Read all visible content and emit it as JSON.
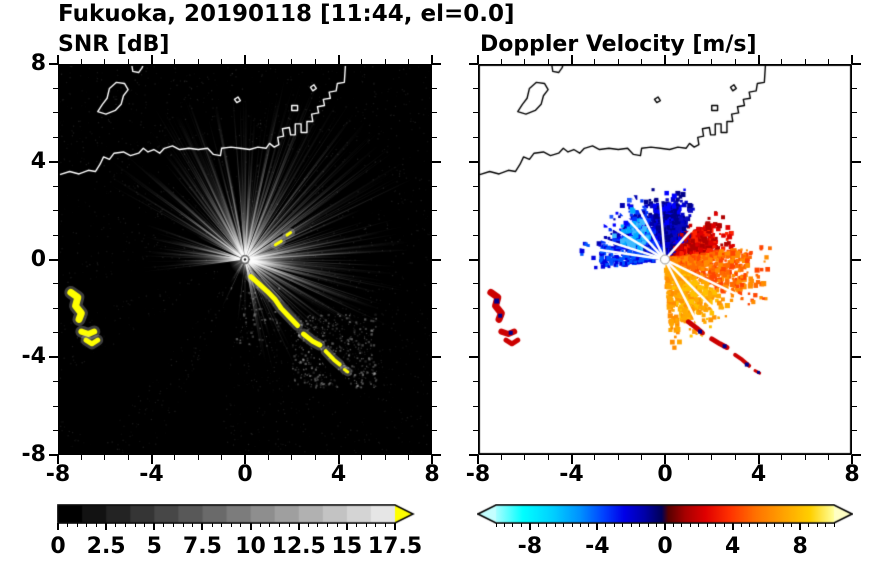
{
  "title": "Fukuoka, 20190118 [11:44, el=0.0]",
  "panels": {
    "snr": {
      "label": "SNR [dB]"
    },
    "doppler": {
      "label": "Doppler Velocity [m/s]"
    }
  },
  "axes": {
    "xlim": [
      -8,
      8
    ],
    "ylim": [
      -8,
      8
    ],
    "x_tick_values": [
      -8,
      -4,
      0,
      4,
      8
    ],
    "x_tick_labels": [
      "-8",
      "-4",
      "0",
      "4",
      "8"
    ],
    "y_tick_values": [
      8,
      4,
      0,
      -4,
      -8
    ],
    "y_tick_labels": [
      "8",
      "4",
      "0",
      "-4",
      "-8"
    ],
    "minor_step": 1
  },
  "colorbars": {
    "snr": {
      "min": 0,
      "max": 17.5,
      "minor_step": 0.5,
      "tick_values": [
        0,
        2.5,
        5,
        7.5,
        10,
        12.5,
        15,
        17.5
      ],
      "tick_labels": [
        "0",
        "2.5",
        "5",
        "7.5",
        "10",
        "12.5",
        "15",
        "17.5"
      ],
      "steps": 14,
      "low_color": "#000000",
      "high_color": "#e6e6e6",
      "over_color": "#ffff00"
    },
    "doppler": {
      "min": -10,
      "max": 10,
      "minor_step": 0.5,
      "tick_values": [
        -8,
        -4,
        0,
        4,
        8
      ],
      "tick_labels": [
        "-8",
        "-4",
        "0",
        "4",
        "8"
      ],
      "gradient": [
        [
          "#a8feff",
          0
        ],
        [
          "#00ffff",
          0.08
        ],
        [
          "#00cfff",
          0.17
        ],
        [
          "#0090ff",
          0.25
        ],
        [
          "#0040ff",
          0.32
        ],
        [
          "#0000e8",
          0.38
        ],
        [
          "#0000a8",
          0.44
        ],
        [
          "#000058",
          0.49
        ],
        [
          "#580000",
          0.51
        ],
        [
          "#a80000",
          0.56
        ],
        [
          "#e00000",
          0.62
        ],
        [
          "#ff3000",
          0.69
        ],
        [
          "#ff7300",
          0.77
        ],
        [
          "#ffa200",
          0.85
        ],
        [
          "#ffd000",
          0.93
        ],
        [
          "#ffff9c",
          1
        ]
      ],
      "under_color": "#c4ffff",
      "over_color": "#ffffc4"
    }
  },
  "coastline": {
    "main": [
      [
        -8,
        3.45
      ],
      [
        -7.5,
        3.6
      ],
      [
        -7.1,
        3.5
      ],
      [
        -6.7,
        3.65
      ],
      [
        -6.4,
        3.6
      ],
      [
        -6.2,
        3.9
      ],
      [
        -6.05,
        4.2
      ],
      [
        -5.8,
        4.1
      ],
      [
        -5.6,
        4.35
      ],
      [
        -5.2,
        4.4
      ],
      [
        -4.9,
        4.25
      ],
      [
        -4.55,
        4.35
      ],
      [
        -4.35,
        4.55
      ],
      [
        -4.15,
        4.4
      ],
      [
        -3.9,
        4.5
      ],
      [
        -3.65,
        4.35
      ],
      [
        -3.45,
        4.55
      ],
      [
        -3.1,
        4.65
      ],
      [
        -2.8,
        4.5
      ],
      [
        -2.4,
        4.55
      ],
      [
        -2.0,
        4.5
      ],
      [
        -1.6,
        4.55
      ],
      [
        -1.35,
        4.3
      ],
      [
        -1.05,
        4.25
      ],
      [
        -1.0,
        4.55
      ],
      [
        -0.6,
        4.6
      ],
      [
        -0.2,
        4.55
      ],
      [
        0.2,
        4.5
      ],
      [
        0.55,
        4.6
      ],
      [
        0.9,
        4.55
      ],
      [
        1.05,
        4.75
      ],
      [
        1.25,
        4.6
      ],
      [
        1.45,
        4.7
      ],
      [
        1.4,
        5.0
      ],
      [
        1.65,
        5.05
      ],
      [
        1.6,
        5.35
      ],
      [
        1.9,
        5.4
      ],
      [
        1.95,
        5.1
      ],
      [
        2.15,
        5.1
      ],
      [
        2.15,
        5.55
      ],
      [
        2.4,
        5.55
      ],
      [
        2.4,
        5.2
      ],
      [
        2.65,
        5.2
      ],
      [
        2.65,
        5.65
      ],
      [
        2.9,
        5.65
      ],
      [
        2.85,
        5.95
      ],
      [
        3.15,
        6.0
      ],
      [
        3.1,
        6.25
      ],
      [
        3.4,
        6.3
      ],
      [
        3.35,
        6.55
      ],
      [
        3.65,
        6.6
      ],
      [
        3.6,
        6.85
      ],
      [
        3.9,
        6.9
      ],
      [
        3.95,
        7.2
      ],
      [
        4.25,
        7.25
      ],
      [
        4.3,
        8.0
      ]
    ],
    "islands": [
      [
        [
          -6.3,
          6.05
        ],
        [
          -6.1,
          6.35
        ],
        [
          -5.9,
          6.6
        ],
        [
          -5.8,
          7.0
        ],
        [
          -5.5,
          7.25
        ],
        [
          -5.15,
          7.2
        ],
        [
          -5.0,
          6.95
        ],
        [
          -5.2,
          6.7
        ],
        [
          -5.3,
          6.35
        ],
        [
          -5.55,
          6.1
        ],
        [
          -5.95,
          5.95
        ]
      ],
      [
        [
          -0.45,
          6.55
        ],
        [
          -0.3,
          6.65
        ],
        [
          -0.2,
          6.5
        ],
        [
          -0.35,
          6.42
        ]
      ],
      [
        [
          2.0,
          6.1
        ],
        [
          2.25,
          6.1
        ],
        [
          2.25,
          6.3
        ],
        [
          2.0,
          6.3
        ]
      ],
      [
        [
          2.8,
          7.05
        ],
        [
          2.95,
          7.15
        ],
        [
          3.05,
          7.0
        ],
        [
          2.9,
          6.9
        ]
      ]
    ],
    "open_shapes": [
      [
        [
          -4.85,
          8.0
        ],
        [
          -4.8,
          7.7
        ],
        [
          -4.55,
          7.65
        ],
        [
          -4.4,
          7.85
        ],
        [
          -4.35,
          8.0
        ]
      ]
    ]
  },
  "chart_data": [
    {
      "type": "heatmap",
      "panel": "snr",
      "title": "SNR [dB]",
      "units": "dB",
      "xlim": [
        -8,
        8
      ],
      "ylim": [
        -8,
        8
      ],
      "background": "#000000",
      "coastline_color": "#ffffff",
      "radar_center": [
        0,
        0
      ],
      "value_range": [
        0,
        17.5
      ],
      "description": "Radar SNR PPI: gray radial echo streaks centered on the radar at the origin, strongest to the north and east; yellow high-SNR arc segments southeast of the radar and patches near (-7,-2); white coastline of Fukuoka bay across the north",
      "streak_sectors": [
        {
          "a0": 18,
          "a1": 82,
          "density": 1.0,
          "len": 1.0
        },
        {
          "a0": 82,
          "a1": 152,
          "density": 0.95,
          "len": 0.9
        },
        {
          "a0": 152,
          "a1": 188,
          "density": 0.55,
          "len": 0.55
        },
        {
          "a0": -32,
          "a1": 18,
          "density": 0.85,
          "len": 0.85
        },
        {
          "a0": -80,
          "a1": -32,
          "density": 0.5,
          "len": 0.6
        },
        {
          "a0": 196,
          "a1": 282,
          "density": 0.1,
          "len": 0.35
        }
      ],
      "gap_wedges": [
        [
          188,
          199
        ],
        [
          213,
          232
        ],
        [
          246,
          262
        ],
        [
          155,
          160
        ],
        [
          96,
          99
        ],
        [
          54,
          56
        ],
        [
          33,
          35
        ],
        [
          130,
          132
        ],
        [
          -53,
          -50
        ],
        [
          -70,
          -68
        ],
        [
          70,
          71.5
        ]
      ],
      "speckle_boxes": [
        {
          "x0": 2.0,
          "x1": 5.6,
          "y0": -5.2,
          "y1": -2.2,
          "n": 450
        },
        {
          "x0": -1.5,
          "x1": 1.5,
          "y0": -3.5,
          "y1": -1.0,
          "n": 120
        }
      ],
      "strong_echo_color": "#ffff00",
      "strong_echo_polylines": [
        {
          "pts": [
            [
              0.25,
              -0.7
            ],
            [
              0.6,
              -1.0
            ],
            [
              0.95,
              -1.3
            ],
            [
              1.3,
              -1.65
            ],
            [
              1.55,
              -2.0
            ],
            [
              1.9,
              -2.35
            ],
            [
              2.25,
              -2.7
            ]
          ],
          "w": 5
        },
        {
          "pts": [
            [
              2.5,
              -3.05
            ],
            [
              2.9,
              -3.35
            ],
            [
              3.2,
              -3.5
            ]
          ],
          "w": 5
        },
        {
          "pts": [
            [
              3.45,
              -3.75
            ],
            [
              3.8,
              -4.1
            ],
            [
              4.05,
              -4.3
            ]
          ],
          "w": 4
        },
        {
          "pts": [
            [
              4.25,
              -4.5
            ],
            [
              4.4,
              -4.6
            ]
          ],
          "w": 3
        },
        {
          "pts": [
            [
              1.3,
              0.6
            ],
            [
              1.55,
              0.75
            ]
          ],
          "w": 3
        },
        {
          "pts": [
            [
              1.8,
              1.0
            ],
            [
              1.95,
              1.1
            ]
          ],
          "w": 3
        },
        {
          "pts": [
            [
              -7.45,
              -1.35
            ],
            [
              -7.15,
              -1.55
            ],
            [
              -7.25,
              -1.9
            ],
            [
              -7.0,
              -2.2
            ],
            [
              -7.1,
              -2.45
            ]
          ],
          "w": 7
        },
        {
          "pts": [
            [
              -7.0,
              -2.95
            ],
            [
              -6.7,
              -3.05
            ],
            [
              -6.45,
              -2.95
            ]
          ],
          "w": 6
        },
        {
          "pts": [
            [
              -6.8,
              -3.3
            ],
            [
              -6.55,
              -3.45
            ],
            [
              -6.3,
              -3.3
            ]
          ],
          "w": 5
        }
      ]
    },
    {
      "type": "heatmap",
      "panel": "doppler",
      "title": "Doppler Velocity [m/s]",
      "units": "m/s",
      "xlim": [
        -8,
        8
      ],
      "ylim": [
        -8,
        8
      ],
      "background": "#ffffff",
      "coastline_color": "#000000",
      "radar_center": [
        0,
        0
      ],
      "value_range": [
        -10,
        10
      ],
      "description": "Doppler velocity PPI: negative velocities (blue, toward radar) north and west of the radar; positive velocities (red-orange-yellow, away) east and southeast; red/navy arc segments southeast near r=4-5 and patches near (-7,-2); black coastline",
      "echo_sectors": [
        {
          "a0": 58,
          "a1": 112,
          "r0": 0.25,
          "r1": 1.95,
          "n": 550,
          "colors": [
            "#00008b",
            "#0000cd",
            "#0a0ac0"
          ]
        },
        {
          "a0": 72,
          "a1": 102,
          "r0": 1.5,
          "r1": 2.3,
          "n": 160,
          "colors": [
            "#00008b",
            "#0000ff"
          ]
        },
        {
          "a0": 112,
          "a1": 168,
          "r0": 0.3,
          "r1": 2.25,
          "n": 500,
          "colors": [
            "#0000ff",
            "#0033ff",
            "#0000b0",
            "#2255ff"
          ]
        },
        {
          "a0": 120,
          "a1": 160,
          "r0": 1.1,
          "r1": 2.0,
          "n": 90,
          "colors": [
            "#00aaff",
            "#3cb9ff"
          ]
        },
        {
          "a0": 168,
          "a1": 187,
          "r0": 0.5,
          "r1": 2.75,
          "n": 170,
          "colors": [
            "#0055ff",
            "#0000e0"
          ]
        },
        {
          "a0": 8,
          "a1": 42,
          "r0": 0.25,
          "r1": 2.35,
          "n": 420,
          "colors": [
            "#dd0000",
            "#ff2200",
            "#b00000"
          ]
        },
        {
          "a0": -28,
          "a1": 8,
          "r0": 0.25,
          "r1": 3.55,
          "n": 560,
          "colors": [
            "#ff4500",
            "#ff6a00",
            "#ff8c00"
          ]
        },
        {
          "a0": -75,
          "a1": -28,
          "r0": 0.3,
          "r1": 2.7,
          "n": 500,
          "colors": [
            "#ff9500",
            "#ffaa00",
            "#ffc100"
          ]
        },
        {
          "a0": -86,
          "a1": -78,
          "r0": 0.4,
          "r1": 2.95,
          "n": 90,
          "colors": [
            "#ff8c00",
            "#ffa500"
          ]
        },
        {
          "a0": 42,
          "a1": 58,
          "r0": 0.3,
          "r1": 1.5,
          "n": 120,
          "colors": [
            "#00008b",
            "#cc0000",
            "#0000ff"
          ]
        }
      ],
      "gap_rays": [
        118,
        134,
        150,
        163,
        172,
        -44,
        -62,
        47,
        95,
        -25
      ],
      "feature_polylines": [
        {
          "pts": [
            [
              -7.45,
              -1.35
            ],
            [
              -7.15,
              -1.55
            ],
            [
              -7.25,
              -1.9
            ],
            [
              -7.0,
              -2.2
            ],
            [
              -7.1,
              -2.45
            ]
          ],
          "w": 7,
          "color": "#cc0000"
        },
        {
          "pts": [
            [
              -7.0,
              -2.95
            ],
            [
              -6.7,
              -3.05
            ],
            [
              -6.45,
              -2.95
            ]
          ],
          "w": 6,
          "color": "#cc0000"
        },
        {
          "pts": [
            [
              -6.8,
              -3.3
            ],
            [
              -6.55,
              -3.45
            ],
            [
              -6.3,
              -3.3
            ]
          ],
          "w": 5,
          "color": "#cc0000"
        },
        {
          "pts": [
            [
              1.0,
              -2.55
            ],
            [
              1.35,
              -2.8
            ],
            [
              1.6,
              -3.0
            ]
          ],
          "w": 5,
          "color": "#cc0000"
        },
        {
          "pts": [
            [
              2.0,
              -3.25
            ],
            [
              2.35,
              -3.45
            ],
            [
              2.65,
              -3.6
            ]
          ],
          "w": 5,
          "color": "#cc0000"
        },
        {
          "pts": [
            [
              3.0,
              -3.9
            ],
            [
              3.3,
              -4.1
            ],
            [
              3.6,
              -4.35
            ]
          ],
          "w": 4,
          "color": "#cc0000"
        },
        {
          "pts": [
            [
              3.85,
              -4.55
            ],
            [
              4.05,
              -4.65
            ]
          ],
          "w": 3,
          "color": "#cc0000"
        }
      ],
      "feature_dots": [
        {
          "p": [
            -7.2,
            -1.7
          ],
          "color": "#00008b",
          "s": 5
        },
        {
          "p": [
            -7.05,
            -2.3
          ],
          "color": "#00008b",
          "s": 4
        },
        {
          "p": [
            -6.6,
            -3.0
          ],
          "color": "#00008b",
          "s": 4
        },
        {
          "p": [
            1.5,
            -2.95
          ],
          "color": "#00008b",
          "s": 4
        },
        {
          "p": [
            2.55,
            -3.55
          ],
          "color": "#00008b",
          "s": 4
        },
        {
          "p": [
            3.5,
            -4.3
          ],
          "color": "#00008b",
          "s": 4
        },
        {
          "p": [
            4.0,
            -4.62
          ],
          "color": "#00008b",
          "s": 3
        }
      ]
    }
  ]
}
